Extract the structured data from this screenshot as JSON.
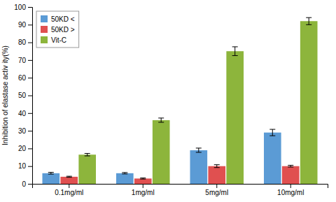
{
  "chart_data": {
    "type": "bar",
    "categories": [
      "0.1mg/ml",
      "1mg/ml",
      "5mg/ml",
      "10mg/ml"
    ],
    "series": [
      {
        "name": "50KD <",
        "color": "#5b9bd5",
        "values": [
          6.0,
          6.0,
          19.0,
          29.0
        ],
        "errors": [
          0.5,
          0.4,
          1.2,
          1.8
        ]
      },
      {
        "name": "50KD >",
        "color": "#e05050",
        "values": [
          4.0,
          3.0,
          10.0,
          10.0
        ],
        "errors": [
          0.3,
          0.3,
          0.8,
          0.5
        ]
      },
      {
        "name": "Vit-C",
        "color": "#8db53c",
        "values": [
          16.5,
          36.0,
          75.0,
          92.0
        ],
        "errors": [
          0.7,
          1.2,
          2.5,
          2.0
        ]
      }
    ],
    "ylabel": "Inhibition of elastase activ ity(%)",
    "ylim": [
      0,
      100
    ],
    "yticks": [
      0,
      10,
      20,
      30,
      40,
      50,
      60,
      70,
      80,
      90,
      100
    ],
    "grid": false,
    "legend": "upper left"
  }
}
